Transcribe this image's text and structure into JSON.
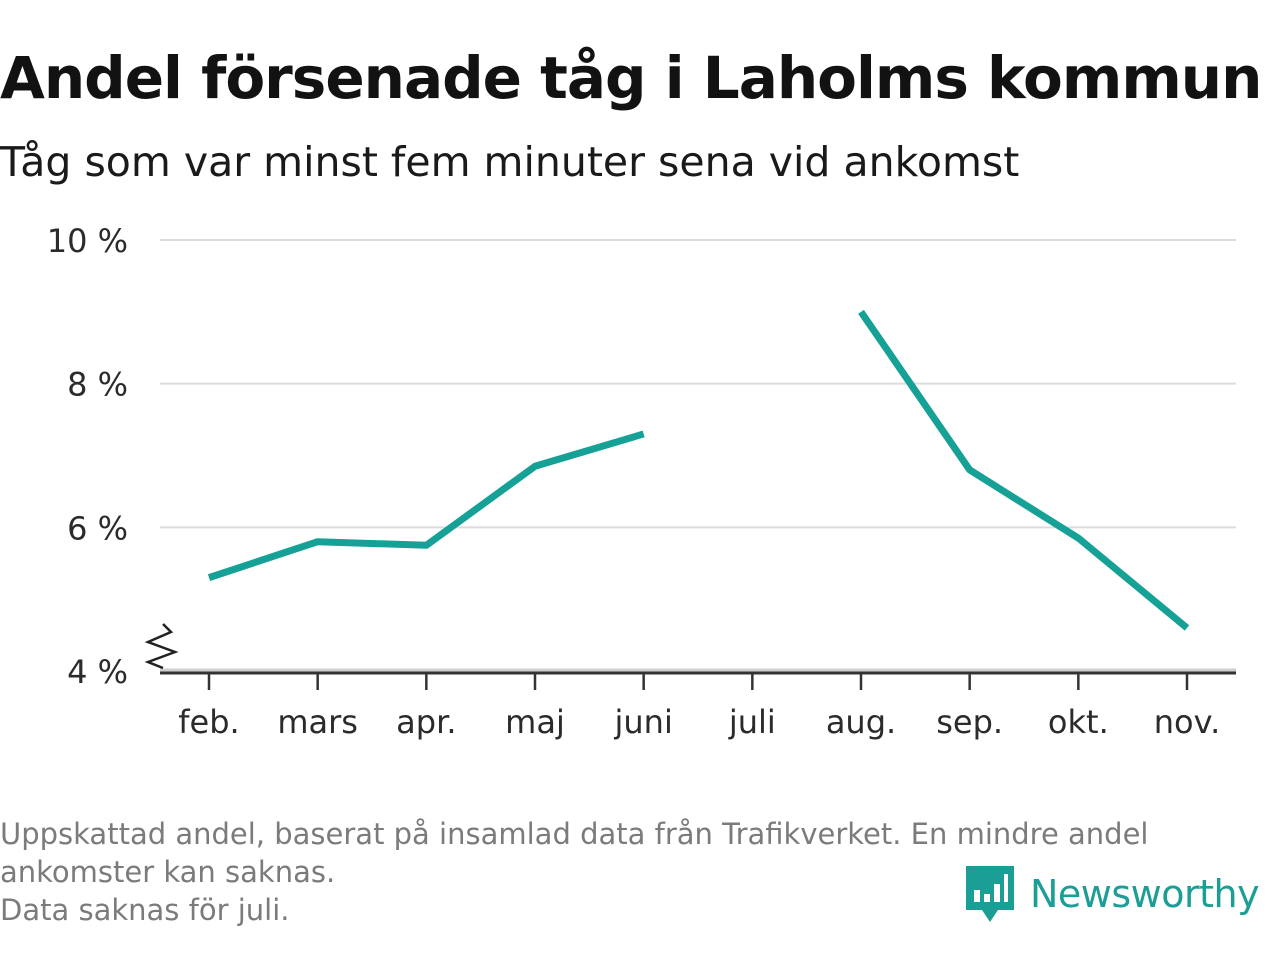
{
  "header": {
    "title": "Andel försenade tåg i Laholms kommun",
    "subtitle": "Tåg som var minst fem minuter sena vid ankomst"
  },
  "chart_data": {
    "type": "line",
    "title": "Andel försenade tåg i Laholms kommun",
    "subtitle": "Tåg som var minst fem minuter sena vid ankomst",
    "xlabel": "",
    "ylabel": "",
    "categories": [
      "feb.",
      "mars",
      "apr.",
      "maj",
      "juni",
      "juli",
      "aug.",
      "sep.",
      "okt.",
      "nov."
    ],
    "series": [
      {
        "values": [
          5.3,
          5.8,
          5.75,
          6.85,
          7.3,
          null,
          9.0,
          6.8,
          5.85,
          4.6
        ]
      }
    ],
    "y_ticks": [
      4,
      6,
      8,
      10
    ],
    "y_tick_labels": [
      "4 %",
      "6 %",
      "8 %",
      "10 %"
    ],
    "ylim": [
      4,
      10
    ],
    "y_axis_break": true,
    "grid": true,
    "color": "#16a196"
  },
  "footer": {
    "notes": [
      "Uppskattad andel, baserat på insamlad data från Trafikverket. En mindre andel",
      "ankomster kan saknas.",
      "Data saknas för juli."
    ]
  },
  "brand": {
    "name": "Newsworthy",
    "color": "#1a9e95"
  }
}
